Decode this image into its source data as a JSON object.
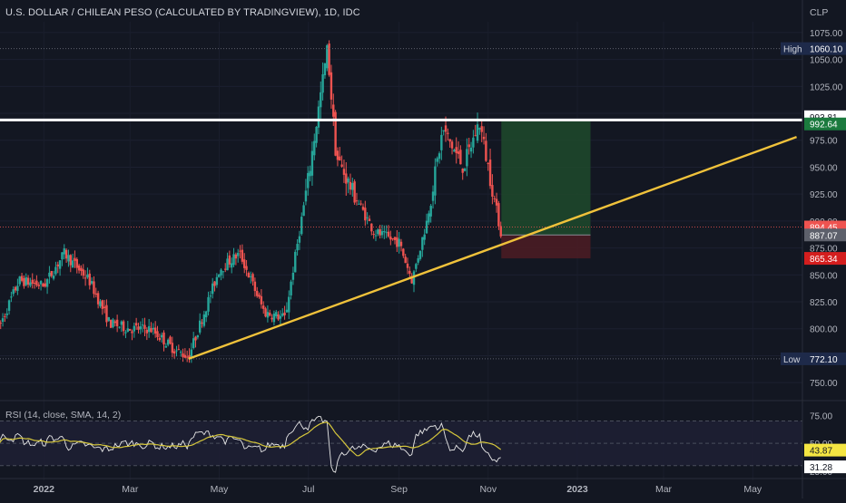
{
  "header": {
    "title": "U.S. DOLLAR / CHILEAN PESO (CALCULATED BY TRADINGVIEW), 1D, IDC"
  },
  "currency": "CLP",
  "colors": {
    "background": "#131722",
    "up": "#26a69a",
    "down": "#ef5350",
    "trendline": "#f0c23b",
    "resistance": "#ffffff",
    "profit_zone": "#1f4a2b",
    "loss_zone": "#4a1c24",
    "rsi_line": "#e8e8e8",
    "rsi_sma": "#d7c83c",
    "rsi_band": "#1e1f33"
  },
  "chart_data": {
    "type": "candlestick",
    "title": "U.S. DOLLAR / CHILEAN PESO (CALCULATED BY TRADINGVIEW), 1D, IDC",
    "ylim": [
      735,
      1085
    ],
    "y_ticks": [
      "1075.00",
      "1050.00",
      "1025.00",
      "1000.00",
      "975.00",
      "950.00",
      "925.00",
      "900.00",
      "875.00",
      "850.00",
      "825.00",
      "800.00",
      "775.00",
      "750.00"
    ],
    "x_ticks": [
      "2022",
      "Mar",
      "May",
      "Jul",
      "Sep",
      "Nov",
      "2023",
      "Mar",
      "May"
    ],
    "price_path": [
      {
        "date": "2021-12-01",
        "close": 800
      },
      {
        "date": "2021-12-15",
        "close": 845
      },
      {
        "date": "2022-01-01",
        "close": 840
      },
      {
        "date": "2022-01-15",
        "close": 870
      },
      {
        "date": "2022-02-01",
        "close": 845
      },
      {
        "date": "2022-02-15",
        "close": 805
      },
      {
        "date": "2022-03-01",
        "close": 800
      },
      {
        "date": "2022-03-15",
        "close": 800
      },
      {
        "date": "2022-04-01",
        "close": 780
      },
      {
        "date": "2022-04-10",
        "close": 774
      },
      {
        "date": "2022-05-01",
        "close": 855
      },
      {
        "date": "2022-05-15",
        "close": 870
      },
      {
        "date": "2022-06-01",
        "close": 815
      },
      {
        "date": "2022-06-15",
        "close": 810
      },
      {
        "date": "2022-07-01",
        "close": 940
      },
      {
        "date": "2022-07-14",
        "close": 1060
      },
      {
        "date": "2022-07-20",
        "close": 960
      },
      {
        "date": "2022-08-01",
        "close": 925
      },
      {
        "date": "2022-08-15",
        "close": 890
      },
      {
        "date": "2022-09-01",
        "close": 880
      },
      {
        "date": "2022-09-10",
        "close": 845
      },
      {
        "date": "2022-09-20",
        "close": 900
      },
      {
        "date": "2022-10-01",
        "close": 985
      },
      {
        "date": "2022-10-15",
        "close": 950
      },
      {
        "date": "2022-10-26",
        "close": 992
      },
      {
        "date": "2022-11-01",
        "close": 950
      },
      {
        "date": "2022-11-10",
        "close": 887
      }
    ],
    "levels": {
      "high": {
        "label": "High",
        "value": 1060.1
      },
      "low": {
        "label": "Low",
        "value": 772.1
      },
      "resistance": {
        "value": 993.81
      },
      "target": {
        "value": 992.64
      },
      "entry": {
        "value": 887.07
      },
      "stop": {
        "value": 865.34
      },
      "current": {
        "value": 894.45
      }
    },
    "trendline": [
      {
        "date": "2022-04-10",
        "value": 772.1
      },
      {
        "date": "2023-05-31",
        "value": 978
      }
    ],
    "position_box": {
      "start": "2022-11-10",
      "end": "2023-01-10",
      "entry": 887.07,
      "target": 992.64,
      "stop": 865.34
    },
    "rsi": {
      "title": "RSI (14, close, SMA, 14, 2)",
      "ylim": [
        20,
        85
      ],
      "ticks": [
        "75.00",
        "50.00",
        "25.00"
      ],
      "value": "43.87",
      "sma_value": "31.28",
      "band": [
        30,
        70
      ]
    }
  }
}
